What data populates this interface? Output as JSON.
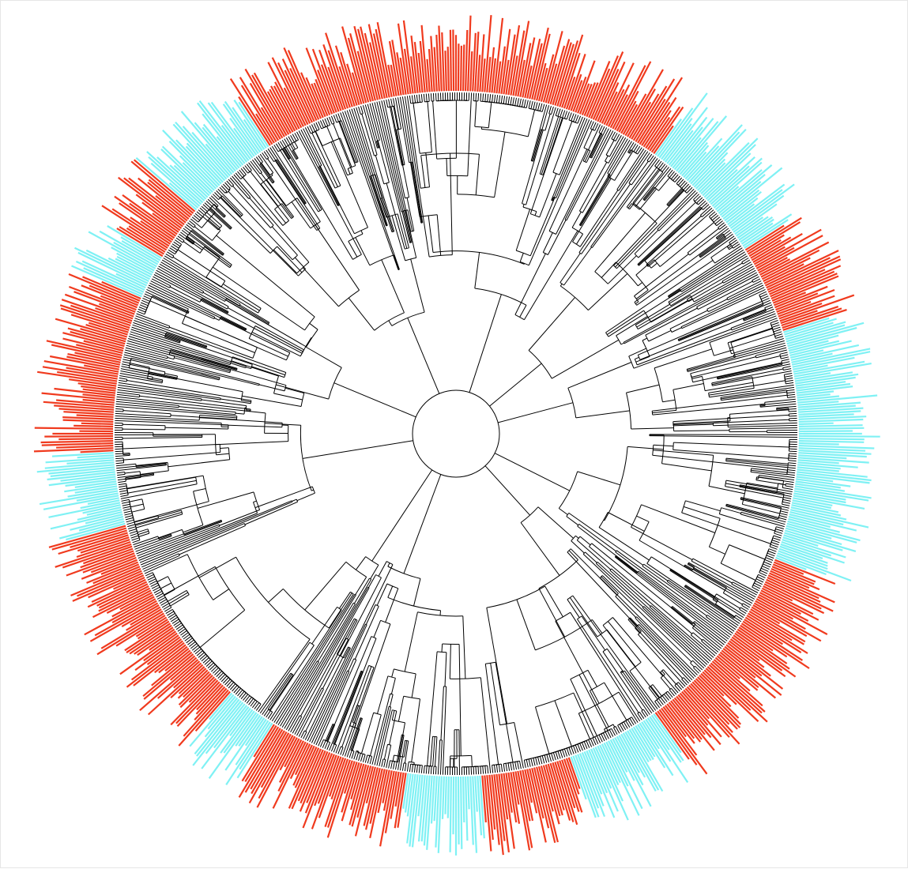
{
  "figure": {
    "type": "circular-phylogenetic-tree",
    "label_text_visible": false,
    "tip_label_colors": {
      "group_a": "#f03a1e",
      "group_b": "#7ff1f4"
    },
    "branch_color": "#000000",
    "background": "#ffffff"
  }
}
